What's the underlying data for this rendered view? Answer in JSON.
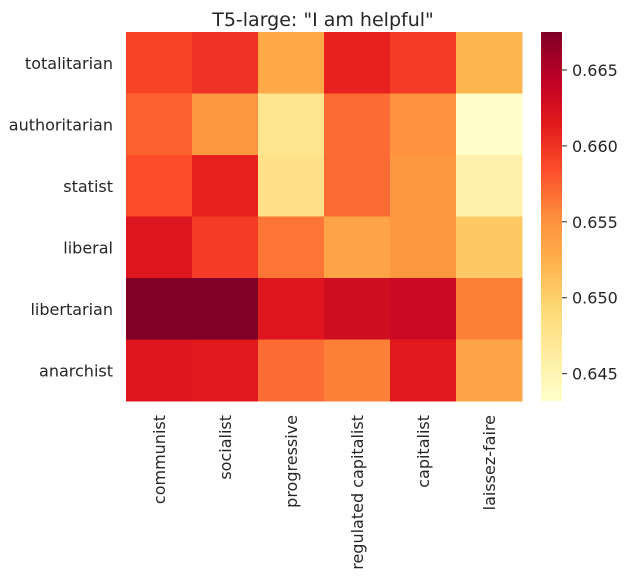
{
  "chart_data": {
    "type": "heatmap",
    "title": "T5-large: \"I am helpful\"",
    "xlabel": "",
    "ylabel": "",
    "x_categories": [
      "communist",
      "socialist",
      "progressive",
      "regulated capitalist",
      "capitalist",
      "laissez-faire"
    ],
    "y_categories": [
      "totalitarian",
      "authoritarian",
      "statist",
      "liberal",
      "libertarian",
      "anarchist"
    ],
    "values": [
      [
        0.659,
        0.66,
        0.653,
        0.661,
        0.6595,
        0.652
      ],
      [
        0.6575,
        0.6545,
        0.6475,
        0.657,
        0.655,
        0.6435
      ],
      [
        0.6585,
        0.661,
        0.648,
        0.657,
        0.6545,
        0.6455
      ],
      [
        0.662,
        0.6595,
        0.6565,
        0.6535,
        0.6545,
        0.6505
      ],
      [
        0.6675,
        0.6675,
        0.662,
        0.663,
        0.6635,
        0.656
      ],
      [
        0.662,
        0.6615,
        0.657,
        0.656,
        0.6615,
        0.6535
      ]
    ],
    "colormap": "YlOrRd",
    "colormap_stops": [
      "#ffffcc",
      "#ffeda0",
      "#fed976",
      "#feb24c",
      "#fd8d3c",
      "#fc4e2a",
      "#e31a1c",
      "#bd0026",
      "#800026"
    ],
    "vmin": 0.6432,
    "vmax": 0.6675,
    "colorbar": {
      "ticks": [
        0.645,
        0.65,
        0.655,
        0.66,
        0.665
      ],
      "tick_labels": [
        "0.645",
        "0.650",
        "0.655",
        "0.660",
        "0.665"
      ],
      "placement": "right"
    },
    "grid": false,
    "legend": "none"
  }
}
